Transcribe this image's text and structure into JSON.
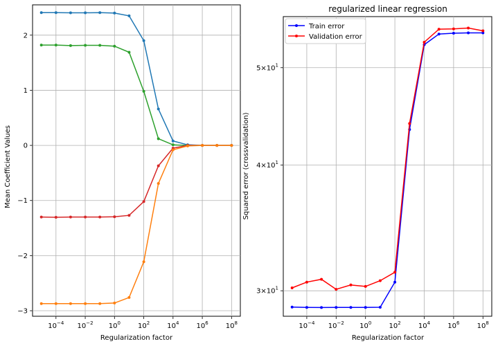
{
  "chart_data": [
    {
      "type": "line",
      "title": "",
      "xlabel": "Regularization factor",
      "ylabel": "Mean Coefficient Values",
      "xscale": "log",
      "x": [
        1e-05,
        0.0001,
        0.001,
        0.01,
        0.1,
        1,
        10,
        100,
        1000,
        10000,
        100000,
        1000000,
        10000000,
        100000000
      ],
      "xlim_log10": [
        -5.6,
        8.6
      ],
      "ylim": [
        -3.1,
        2.55
      ],
      "xticks_log10": [
        -4,
        -2,
        0,
        2,
        4,
        6,
        8
      ],
      "xtick_labels": [
        "−4",
        "−2",
        "0",
        "2",
        "4",
        "6",
        "8"
      ],
      "yticks": [
        -3,
        -2,
        -1,
        0,
        1,
        2
      ],
      "ytick_labels": [
        "−3",
        "−2",
        "−1",
        "0",
        "1",
        "2"
      ],
      "grid": true,
      "series": [
        {
          "color": "#1f77b4",
          "values": [
            2.41,
            2.41,
            2.405,
            2.405,
            2.41,
            2.4,
            2.35,
            1.9,
            0.66,
            0.08,
            0.01,
            0.0,
            0.0,
            0.0
          ]
        },
        {
          "color": "#2ca02c",
          "values": [
            1.82,
            1.82,
            1.81,
            1.815,
            1.815,
            1.8,
            1.69,
            0.98,
            0.12,
            0.01,
            0.0,
            0.0,
            0.0,
            0.0
          ]
        },
        {
          "color": "#d62728",
          "values": [
            -1.3,
            -1.305,
            -1.3,
            -1.3,
            -1.3,
            -1.295,
            -1.27,
            -1.02,
            -0.37,
            -0.05,
            0.0,
            0.0,
            0.0,
            0.0
          ]
        },
        {
          "color": "#ff7f0e",
          "values": [
            -2.87,
            -2.87,
            -2.87,
            -2.87,
            -2.87,
            -2.86,
            -2.76,
            -2.11,
            -0.69,
            -0.08,
            -0.01,
            0.0,
            0.0,
            0.0
          ]
        }
      ]
    },
    {
      "type": "line",
      "title": "regularized linear regression",
      "xlabel": "Regularization factor",
      "ylabel": "Squared error (crossvalidation)",
      "xscale": "log",
      "yscale": "log",
      "x": [
        1e-05,
        0.0001,
        0.001,
        0.01,
        0.1,
        1,
        10,
        100,
        1000,
        10000,
        100000,
        1000000,
        10000000,
        100000000
      ],
      "xlim_log10": [
        -5.6,
        8.6
      ],
      "ylim": [
        28.3,
        56.2
      ],
      "xticks_log10": [
        -4,
        -2,
        0,
        2,
        4,
        6,
        8
      ],
      "xtick_labels": [
        "−4",
        "−2",
        "0",
        "2",
        "4",
        "6",
        "8"
      ],
      "yticks": [
        30,
        40,
        50
      ],
      "ytick_labels": [
        "3",
        "4",
        "5"
      ],
      "grid": true,
      "legend": "top-left",
      "series": [
        {
          "name": "Train error",
          "color": "#0000ff",
          "values": [
            28.9,
            28.88,
            28.87,
            28.88,
            28.88,
            28.88,
            28.89,
            30.6,
            43.4,
            52.7,
            54.0,
            54.1,
            54.15,
            54.15
          ]
        },
        {
          "name": "Validation error",
          "color": "#ff0000",
          "values": [
            30.2,
            30.6,
            30.8,
            30.1,
            30.4,
            30.3,
            30.7,
            31.3,
            44.0,
            53.0,
            54.6,
            54.65,
            54.75,
            54.4
          ]
        }
      ]
    }
  ]
}
